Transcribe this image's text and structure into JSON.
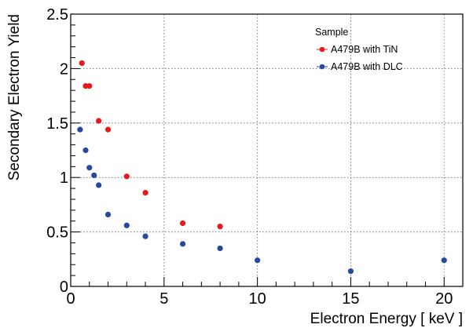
{
  "chart_data": {
    "type": "scatter",
    "title": "",
    "xlabel": "Electron Energy [ keV ]",
    "ylabel": "Secondary Electron Yield",
    "xlim": [
      0,
      21
    ],
    "ylim": [
      0,
      2.5
    ],
    "x_ticks": [
      0,
      5,
      10,
      15,
      20
    ],
    "y_ticks": [
      0,
      0.5,
      1,
      1.5,
      2,
      2.5
    ],
    "x_tick_labels": [
      "0",
      "5",
      "10",
      "15",
      "20"
    ],
    "y_tick_labels": [
      "0",
      "0.5",
      "1",
      "1.5",
      "2",
      "2.5"
    ],
    "grid": true,
    "legend": {
      "title": "Sample",
      "placement": "top-right"
    },
    "series": [
      {
        "name": "A479B with TiN",
        "color": "#e8191e",
        "x": [
          0.6,
          0.8,
          1.0,
          1.5,
          2.0,
          3.0,
          4.0,
          6.0,
          8.0
        ],
        "y": [
          2.05,
          1.84,
          1.84,
          1.52,
          1.44,
          1.01,
          0.86,
          0.58,
          0.55
        ]
      },
      {
        "name": "A479B with DLC",
        "color": "#2549a0",
        "x": [
          0.5,
          0.8,
          1.0,
          1.25,
          1.5,
          2.0,
          3.0,
          4.0,
          6.0,
          8.0,
          10.0,
          15.0,
          20.0
        ],
        "y": [
          1.44,
          1.25,
          1.09,
          1.02,
          0.93,
          0.66,
          0.56,
          0.46,
          0.39,
          0.35,
          0.24,
          0.14,
          0.24
        ]
      }
    ]
  }
}
